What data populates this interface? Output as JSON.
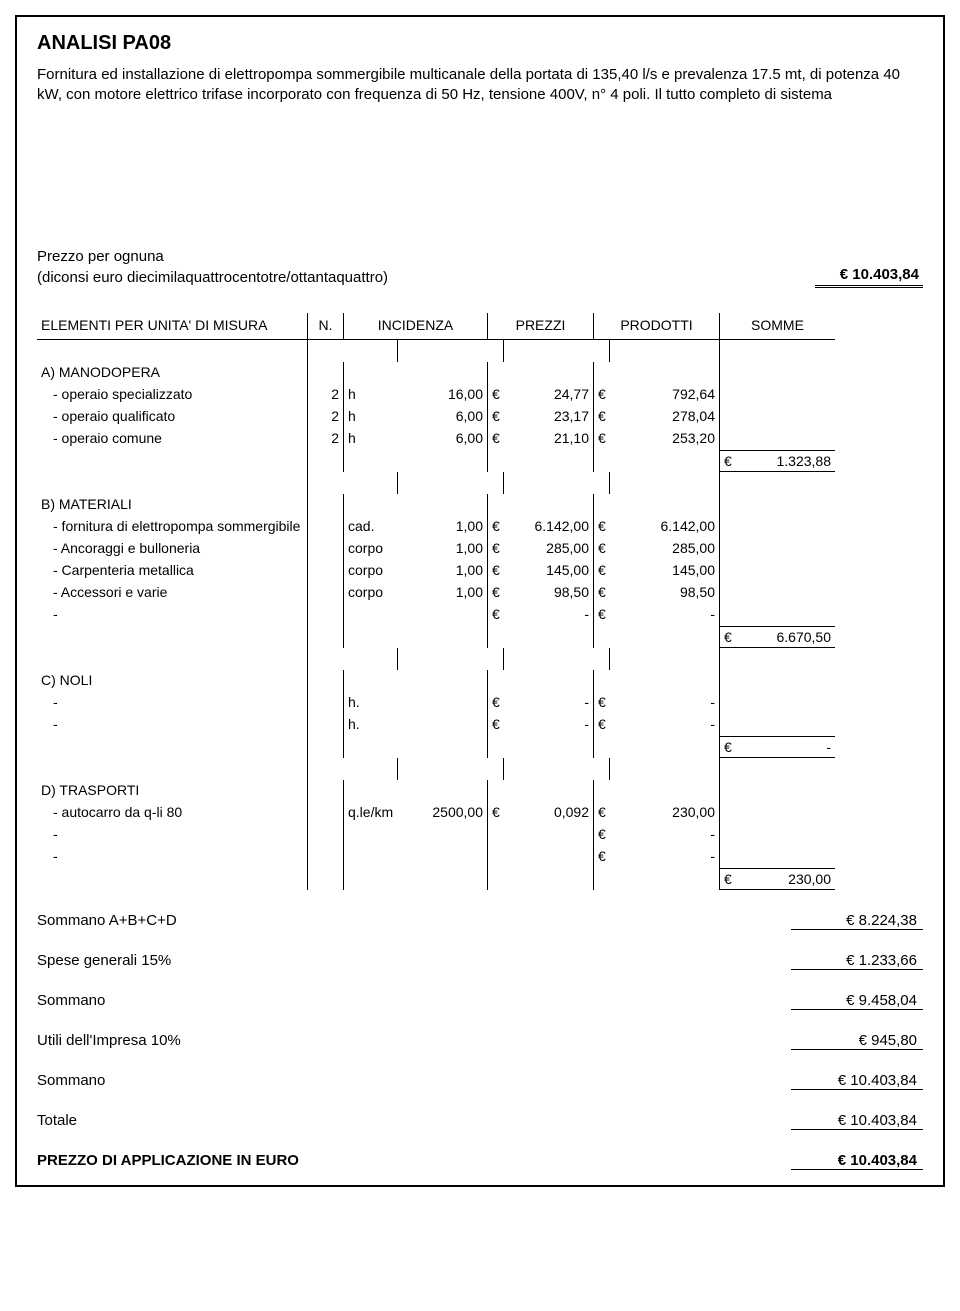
{
  "title": "ANALISI   PA08",
  "description": "Fornitura ed installazione di elettropompa sommergibile multicanale della portata di 135,40 l/s e prevalenza 17.5 mt, di potenza 40 kW, con motore elettrico trifase incorporato con frequenza di 50 Hz, tensione 400V, n° 4 poli. Il tutto completo di sistema",
  "prezzo_label1": "Prezzo per ognuna",
  "prezzo_label2": "(diconsi euro diecimilaquattrocentotre/ottantaquattro)",
  "prezzo_value": "€    10.403,84",
  "headers": {
    "c1": "ELEMENTI PER UNITA' DI MISURA",
    "c2": "N.",
    "c3": "INCIDENZA",
    "c4": "PREZZI",
    "c5": "PRODOTTI",
    "c6": "SOMME"
  },
  "sectA": {
    "title": "A) MANODOPERA",
    "rows": [
      {
        "label": "- operaio specializzato",
        "n": "2",
        "u": "h",
        "inc": "16,00",
        "pr": "24,77",
        "prd": "792,64"
      },
      {
        "label": "- operaio qualificato",
        "n": "2",
        "u": "h",
        "inc": "6,00",
        "pr": "23,17",
        "prd": "278,04"
      },
      {
        "label": "- operaio comune",
        "n": "2",
        "u": "h",
        "inc": "6,00",
        "pr": "21,10",
        "prd": "253,20"
      }
    ],
    "subtotal": "1.323,88"
  },
  "sectB": {
    "title": "B) MATERIALI",
    "rows": [
      {
        "label": "- fornitura di elettropompa sommergibile",
        "n": "",
        "u": "cad.",
        "inc": "1,00",
        "pr": "6.142,00",
        "prd": "6.142,00"
      },
      {
        "label": "- Ancoraggi e bulloneria",
        "n": "",
        "u": "corpo",
        "inc": "1,00",
        "pr": "285,00",
        "prd": "285,00"
      },
      {
        "label": "- Carpenteria metallica",
        "n": "",
        "u": "corpo",
        "inc": "1,00",
        "pr": "145,00",
        "prd": "145,00"
      },
      {
        "label": "- Accessori e varie",
        "n": "",
        "u": "corpo",
        "inc": "1,00",
        "pr": "98,50",
        "prd": "98,50"
      },
      {
        "label": "-",
        "n": "",
        "u": "",
        "inc": "",
        "pr": "-",
        "prd": "-"
      }
    ],
    "subtotal": "6.670,50"
  },
  "sectC": {
    "title": "C) NOLI",
    "rows": [
      {
        "label": "-",
        "n": "",
        "u": "h.",
        "inc": "",
        "pr": "-",
        "prd": "-"
      },
      {
        "label": "-",
        "n": "",
        "u": "h.",
        "inc": "",
        "pr": "-",
        "prd": "-"
      }
    ],
    "subtotal": "-"
  },
  "sectD": {
    "title": "D) TRASPORTI",
    "rows": [
      {
        "label": "- autocarro da q-li 80",
        "n": "",
        "u": "q.le/km",
        "inc": "2500,00",
        "pr": "0,092",
        "prd": "230,00"
      },
      {
        "label": "-",
        "n": "",
        "u": "",
        "inc": "",
        "pr": "",
        "prd": "-"
      },
      {
        "label": "-",
        "n": "",
        "u": "",
        "inc": "",
        "pr": "",
        "prd": "-"
      }
    ],
    "subtotal": "230,00"
  },
  "summary": [
    {
      "label": "Sommano  A+B+C+D",
      "val": "€     8.224,38"
    },
    {
      "label": "Spese generali 15%",
      "val": "€     1.233,66"
    },
    {
      "label": "Sommano",
      "val": "€     9.458,04"
    },
    {
      "label": "Utili dell'Impresa 10%",
      "val": "€        945,80"
    },
    {
      "label": "Sommano",
      "val": "€   10.403,84"
    },
    {
      "label": "Totale",
      "val": "€   10.403,84"
    }
  ],
  "final": {
    "label": "PREZZO DI APPLICAZIONE IN EURO",
    "val": "€   10.403,84"
  },
  "euro": "€"
}
